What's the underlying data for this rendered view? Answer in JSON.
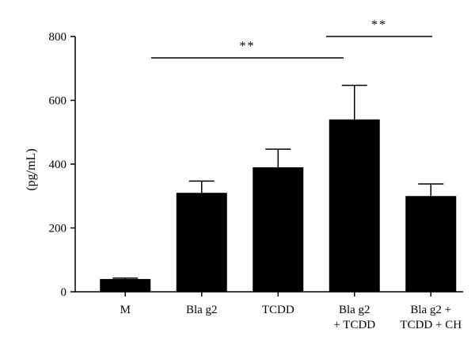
{
  "chart_data": {
    "type": "bar",
    "categories": [
      [
        "M"
      ],
      [
        "Bla g2"
      ],
      [
        "TCDD"
      ],
      [
        "Bla g2",
        "+ TCDD"
      ],
      [
        "Bla g2 +",
        "TCDD + CH"
      ]
    ],
    "values": [
      40,
      310,
      390,
      540,
      300
    ],
    "errors": [
      3,
      37,
      57,
      107,
      38
    ],
    "ylabel": "(pg/mL)",
    "xlabel": "",
    "title": "",
    "ylim": [
      0,
      800
    ],
    "yticks": [
      0,
      200,
      400,
      600,
      800
    ],
    "bar_color": "#000000",
    "significance": [
      {
        "from": 1,
        "to": 3,
        "label": "**"
      },
      {
        "from": 3,
        "to": 4,
        "label": "**"
      }
    ]
  }
}
